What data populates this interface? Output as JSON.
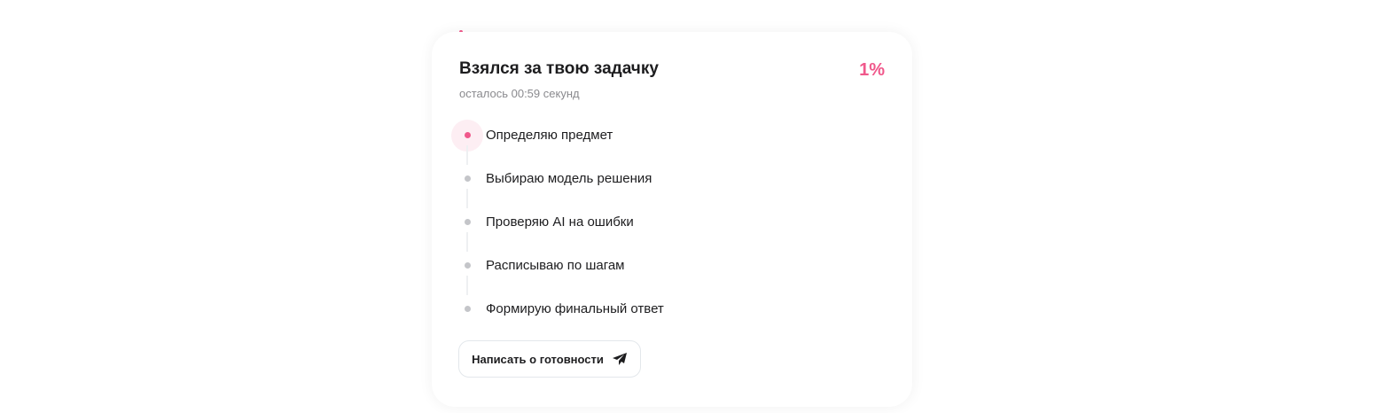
{
  "card": {
    "title": "Взялся за твою задачку",
    "percent": "1%",
    "progress": 0.01,
    "subtitle": "осталось 00:59 секунд",
    "steps": [
      {
        "label": "Определяю предмет",
        "active": true
      },
      {
        "label": "Выбираю модель решения",
        "active": false
      },
      {
        "label": "Проверяю AI на ошибки",
        "active": false
      },
      {
        "label": "Расписываю по шагам",
        "active": false
      },
      {
        "label": "Формирую финальный ответ",
        "active": false
      }
    ],
    "button_label": "Написать о готовности",
    "button_icon": "paper-plane-icon",
    "accent_color": "#f0588b"
  }
}
